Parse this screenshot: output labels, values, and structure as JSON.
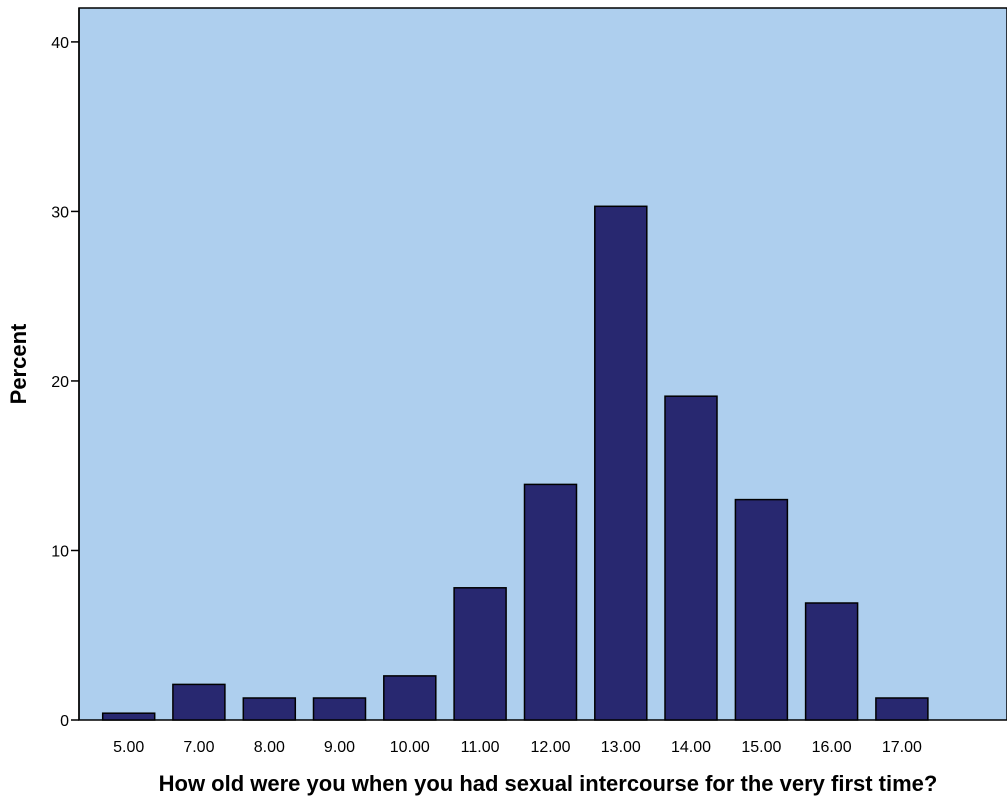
{
  "chart_data": {
    "type": "bar",
    "xlabel": "How old were you when you had sexual intercourse for the very first time?",
    "ylabel": "Percent",
    "categories": [
      "5.00",
      "7.00",
      "8.00",
      "9.00",
      "10.00",
      "11.00",
      "12.00",
      "13.00",
      "14.00",
      "15.00",
      "16.00",
      "17.00"
    ],
    "values": [
      0.4,
      2.1,
      1.3,
      1.3,
      2.6,
      7.8,
      13.9,
      30.3,
      19.1,
      13.0,
      6.9,
      1.3
    ],
    "ylim": [
      0,
      42
    ],
    "yticks": [
      "0",
      "10",
      "20",
      "30",
      "40"
    ],
    "grid": false,
    "colors": {
      "plot_background": "#aecfee",
      "bar_fill": "#282870",
      "bar_stroke": "#000000"
    }
  }
}
